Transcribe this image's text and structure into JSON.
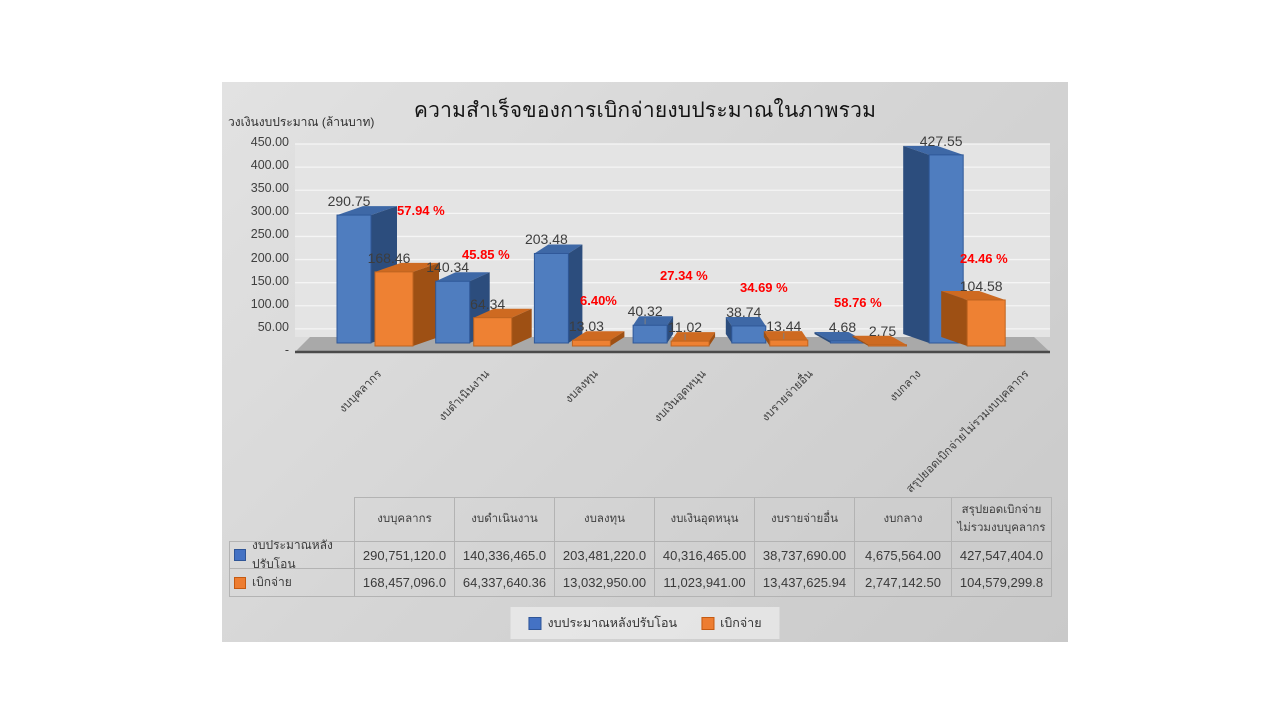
{
  "title": "ความสำเร็จของการเบิกจ่ายงบประมาณในภาพรวม",
  "y_axis_title": "วงเงินงบประมาณ (ล้านบาท)",
  "colors": {
    "series1": "#4472c4",
    "series2": "#ed7d31",
    "percent_label": "#ff0000",
    "floor": "#a9a9a9",
    "wall": "#e4e4e4",
    "gridline": "#f5f5f5"
  },
  "chart_data": {
    "type": "bar",
    "projection": "3d-clustered-column",
    "title": "ความสำเร็จของการเบิกจ่ายงบประมาณในภาพรวม",
    "ylabel": "วงเงินงบประมาณ (ล้านบาท)",
    "ylim": [
      0,
      450
    ],
    "grid": true,
    "legend_position": "bottom",
    "categories": [
      "งบบุคลากร",
      "งบดำเนินงาน",
      "งบลงทุน",
      "งบเงินอุดหนุน",
      "งบรายจ่ายอื่น",
      "งบกลาง",
      "สรุปยอดเบิกจ่ายไม่รวมงบบุคลากร"
    ],
    "series": [
      {
        "key": "budget",
        "name": "งบประมาณหลังปรับโอน",
        "values": [
          290.75,
          140.34,
          203.48,
          40.32,
          38.74,
          4.68,
          427.55
        ],
        "labels": [
          "290.75",
          "140.34",
          "203.48",
          "40.32",
          "38.74",
          "4.68",
          "427.55"
        ],
        "color": "#4472c4",
        "colors3d": {
          "front": "#4f7dbf",
          "top": "#3e68a6",
          "side": "#2c4d7d",
          "stroke": "#2f5898"
        }
      },
      {
        "key": "disbursed",
        "name": "เบิกจ่าย",
        "values": [
          168.46,
          64.34,
          13.03,
          11.02,
          13.44,
          2.75,
          104.58
        ],
        "labels": [
          "168.46",
          "64.34",
          "13.03",
          "11.02",
          "13.44",
          "2.75",
          "104.58"
        ],
        "color": "#ed7d31",
        "colors3d": {
          "front": "#ee8133",
          "top": "#ce6a21",
          "side": "#9e5014",
          "stroke": "#bf6420"
        }
      }
    ],
    "percent_labels": [
      "57.94 %",
      "45.85 %",
      "6.40%",
      "27.34 %",
      "34.69 %",
      "58.76 %",
      "24.46 %"
    ],
    "y_ticks": [
      {
        "label": "450.00",
        "value": 450
      },
      {
        "label": "400.00",
        "value": 400
      },
      {
        "label": "350.00",
        "value": 350
      },
      {
        "label": "300.00",
        "value": 300
      },
      {
        "label": "250.00",
        "value": 250
      },
      {
        "label": "200.00",
        "value": 200
      },
      {
        "label": "150.00",
        "value": 150
      },
      {
        "label": "100.00",
        "value": 100
      },
      {
        "label": "50.00",
        "value": 50
      },
      {
        "label": "-",
        "value": 0
      }
    ]
  },
  "table": {
    "col_headers": [
      "งบบุคลากร",
      "งบดำเนินงาน",
      "งบลงทุน",
      "งบเงินอุดหนุน",
      "งบรายจ่ายอื่น",
      "งบกลาง",
      "สรุปยอดเบิกจ่ายไม่รวมงบบุคลากร"
    ],
    "rows": [
      {
        "label": "งบประมาณหลังปรับโอน",
        "swatch": "#4472c4",
        "swatch_border": "#2f5597",
        "cells": [
          "290,751,120.0",
          "140,336,465.0",
          "203,481,220.0",
          "40,316,465.00",
          "38,737,690.00",
          "4,675,564.00",
          "427,547,404.0"
        ]
      },
      {
        "label": "เบิกจ่าย",
        "swatch": "#ed7d31",
        "swatch_border": "#c55a11",
        "cells": [
          "168,457,096.0",
          "64,337,640.36",
          "13,032,950.00",
          "11,023,941.00",
          "13,437,625.94",
          "2,747,142.50",
          "104,579,299.8"
        ]
      }
    ]
  },
  "legend": {
    "items": [
      {
        "label": "งบประมาณหลังปรับโอน",
        "color": "#4472c4",
        "border": "#2f5597"
      },
      {
        "label": "เบิกจ่าย",
        "color": "#ed7d31",
        "border": "#c55a11"
      }
    ]
  }
}
